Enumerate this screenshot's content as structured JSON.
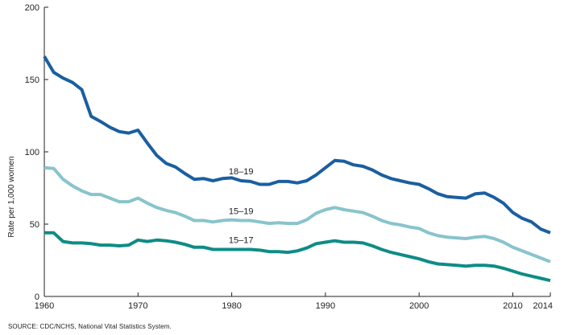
{
  "chart_data": {
    "type": "line",
    "ylabel": "Rate per 1,000 women",
    "xlim": [
      1960,
      2014
    ],
    "ylim": [
      0,
      200
    ],
    "x_ticks": [
      "1960",
      "1970",
      "1980",
      "1990",
      "2000",
      "2010",
      "2014"
    ],
    "y_ticks": [
      "0",
      "50",
      "100",
      "150",
      "200"
    ],
    "grid": false,
    "x": [
      1960,
      1961,
      1962,
      1963,
      1964,
      1965,
      1966,
      1967,
      1968,
      1969,
      1970,
      1971,
      1972,
      1973,
      1974,
      1975,
      1976,
      1977,
      1978,
      1979,
      1980,
      1981,
      1982,
      1983,
      1984,
      1985,
      1986,
      1987,
      1988,
      1989,
      1990,
      1991,
      1992,
      1993,
      1994,
      1995,
      1996,
      1997,
      1998,
      1999,
      2000,
      2001,
      2002,
      2003,
      2004,
      2005,
      2006,
      2007,
      2008,
      2009,
      2010,
      2011,
      2012,
      2013,
      2014
    ],
    "series": [
      {
        "name": "18–19",
        "color": "#1a5fa0",
        "values": [
          166,
          155,
          151,
          148,
          143,
          124.5,
          121,
          117,
          114,
          113,
          115,
          106,
          97.5,
          92,
          89.5,
          85,
          81,
          81.5,
          80,
          81.5,
          82,
          80,
          79.5,
          77.5,
          77.5,
          79.5,
          79.5,
          78.5,
          80,
          84,
          89,
          94,
          93.5,
          91,
          90,
          87.5,
          84,
          81.5,
          80,
          78.5,
          77.5,
          74.5,
          71,
          69,
          68.5,
          68,
          71,
          71.5,
          68.5,
          64.5,
          58,
          54,
          51.5,
          46.5,
          44
        ]
      },
      {
        "name": "15–19",
        "color": "#88c4cc",
        "values": [
          89,
          88.5,
          81,
          76.5,
          73,
          70.5,
          70.5,
          68,
          65.5,
          65.5,
          68,
          64.5,
          61.5,
          59.5,
          58,
          55.5,
          52.5,
          52.5,
          51.5,
          52.5,
          53,
          52.5,
          52.5,
          51.5,
          50.5,
          51,
          50.5,
          50.5,
          53,
          57.5,
          60,
          61.5,
          60,
          59,
          58,
          55.5,
          52.5,
          50.5,
          49.5,
          48,
          47,
          44,
          42,
          41,
          40.5,
          40,
          41,
          41.5,
          40,
          37.5,
          34,
          31.5,
          29,
          26.5,
          24
        ]
      },
      {
        "name": "15–17",
        "color": "#0e8c86",
        "values": [
          44,
          44,
          38,
          37,
          37,
          36.5,
          35.5,
          35.5,
          35,
          35.5,
          39,
          38,
          39,
          38.5,
          37.5,
          36,
          34,
          34,
          32.5,
          32.5,
          32.5,
          32.5,
          32.5,
          32,
          31,
          31,
          30.5,
          31.5,
          33.5,
          36.5,
          37.5,
          38.5,
          37.5,
          37.5,
          37,
          35,
          32.5,
          30.5,
          29,
          27.5,
          26,
          24,
          22.5,
          22,
          21.5,
          21,
          21.5,
          21.5,
          21,
          19.5,
          17.5,
          15.5,
          14,
          12.5,
          11
        ]
      }
    ]
  },
  "source_note": "SOURCE: CDC/NCHS, National Vital Statistics System."
}
